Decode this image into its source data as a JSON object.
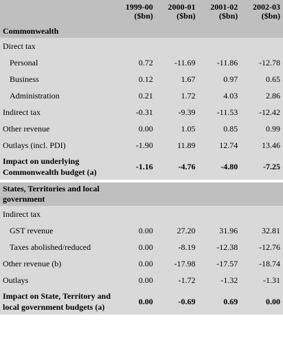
{
  "header": {
    "columns": [
      {
        "year": "1999-00",
        "unit": "($bn)"
      },
      {
        "year": "2000-01",
        "unit": "($bn)"
      },
      {
        "year": "2001-02",
        "unit": "($bn)"
      },
      {
        "year": "2002-03",
        "unit": "($bn)"
      }
    ]
  },
  "sections": [
    {
      "title": "Commonwealth",
      "rows": [
        {
          "label": "Direct tax",
          "children": [
            {
              "label": "Personal",
              "values": [
                "0.72",
                "-11.69",
                "-11.86",
                "-12.78"
              ]
            },
            {
              "label": "Business",
              "values": [
                "0.12",
                "1.67",
                "0.97",
                "0.65"
              ]
            },
            {
              "label": "Administration",
              "values": [
                "0.21",
                "1.72",
                "4.03",
                "2.86"
              ]
            }
          ]
        },
        {
          "label": "Indirect tax",
          "values": [
            "-0.31",
            "-9.39",
            "-11.53",
            "-12.42"
          ]
        },
        {
          "label": "Other revenue",
          "values": [
            "0.00",
            "1.05",
            "0.85",
            "0.99"
          ]
        },
        {
          "label": "Outlays (incl. PDI)",
          "values": [
            "-1.90",
            "11.89",
            "12.74",
            "13.46"
          ]
        }
      ],
      "total": {
        "label": "Impact on underlying Commonwealth budget (a)",
        "values": [
          "-1.16",
          "-4.76",
          "-4.80",
          "-7.25"
        ]
      }
    },
    {
      "title": "States, Territories and local government",
      "rows": [
        {
          "label": "Indirect tax",
          "children": [
            {
              "label": "GST revenue",
              "values": [
                "0.00",
                "27.20",
                "31.96",
                "32.81"
              ]
            },
            {
              "label": "Taxes abolished/reduced",
              "values": [
                "0.00",
                "-8.19",
                "-12.38",
                "-12.76"
              ]
            }
          ]
        },
        {
          "label": "Other revenue (b)",
          "values": [
            "0.00",
            "-17.98",
            "-17.57",
            "-18.74"
          ]
        },
        {
          "label": "Outlays",
          "values": [
            "0.00",
            "-1.72",
            "-1.32",
            "-1.31"
          ]
        }
      ],
      "total": {
        "label": "Impact on State, Territory and local government budgets (a)",
        "values": [
          "0.00",
          "-0.69",
          "0.69",
          "0.00"
        ]
      }
    }
  ]
}
